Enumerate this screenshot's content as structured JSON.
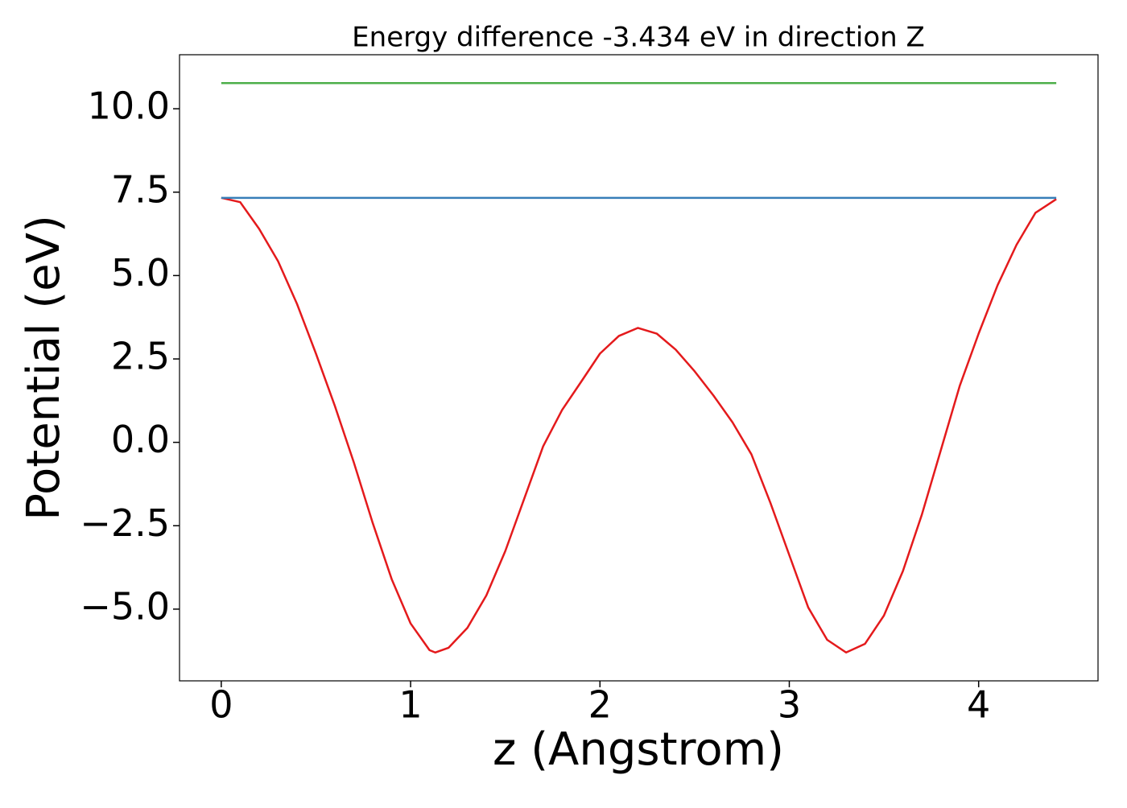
{
  "chart_data": {
    "type": "line",
    "title": "Energy difference -3.434 eV in direction Z",
    "x_label": "z (Angstrom)",
    "y_label": "Potential (eV)",
    "xlim": [
      -0.2205,
      4.6305
    ],
    "ylim": [
      -7.15,
      11.62
    ],
    "xticks": [
      0,
      1,
      2,
      3,
      4
    ],
    "yticks": [
      {
        "value": -5.0,
        "label": "−5.0"
      },
      {
        "value": -2.5,
        "label": "−2.5"
      },
      {
        "value": 0.0,
        "label": "0.0"
      },
      {
        "value": 2.5,
        "label": "2.5"
      },
      {
        "value": 5.0,
        "label": "5.0"
      },
      {
        "value": 7.5,
        "label": "7.5"
      },
      {
        "value": 10.0,
        "label": "10.0"
      }
    ],
    "grid": false,
    "series": [
      {
        "color": "#e41a1c",
        "x": [
          0,
          0.1,
          0.2,
          0.3,
          0.4,
          0.5,
          0.6,
          0.7,
          0.8,
          0.9,
          1.0,
          1.1,
          1.13,
          1.2,
          1.3,
          1.4,
          1.5,
          1.6,
          1.7,
          1.8,
          1.9,
          2.0,
          2.1,
          2.2,
          2.3,
          2.4,
          2.5,
          2.6,
          2.7,
          2.8,
          2.9,
          3.0,
          3.1,
          3.2,
          3.3,
          3.4,
          3.5,
          3.6,
          3.7,
          3.8,
          3.9,
          4.0,
          4.1,
          4.2,
          4.3,
          4.41
        ],
        "values": [
          7.33,
          7.2,
          6.4,
          5.43,
          4.15,
          2.66,
          1.09,
          -0.6,
          -2.42,
          -4.1,
          -5.43,
          -6.23,
          -6.3,
          -6.16,
          -5.56,
          -4.59,
          -3.26,
          -1.69,
          -0.12,
          0.97,
          1.81,
          2.66,
          3.19,
          3.43,
          3.26,
          2.78,
          2.13,
          1.4,
          0.6,
          -0.36,
          -1.81,
          -3.38,
          -4.95,
          -5.92,
          -6.3,
          -6.04,
          -5.19,
          -3.86,
          -2.17,
          -0.24,
          1.69,
          3.26,
          4.71,
          5.92,
          6.88,
          7.29
        ]
      },
      {
        "color": "#377eb8",
        "x": [
          0,
          4.41
        ],
        "values": [
          7.33,
          7.33
        ]
      },
      {
        "color": "#4daf4a",
        "x": [
          0,
          4.41
        ],
        "values": [
          10.77,
          10.77
        ]
      }
    ]
  }
}
